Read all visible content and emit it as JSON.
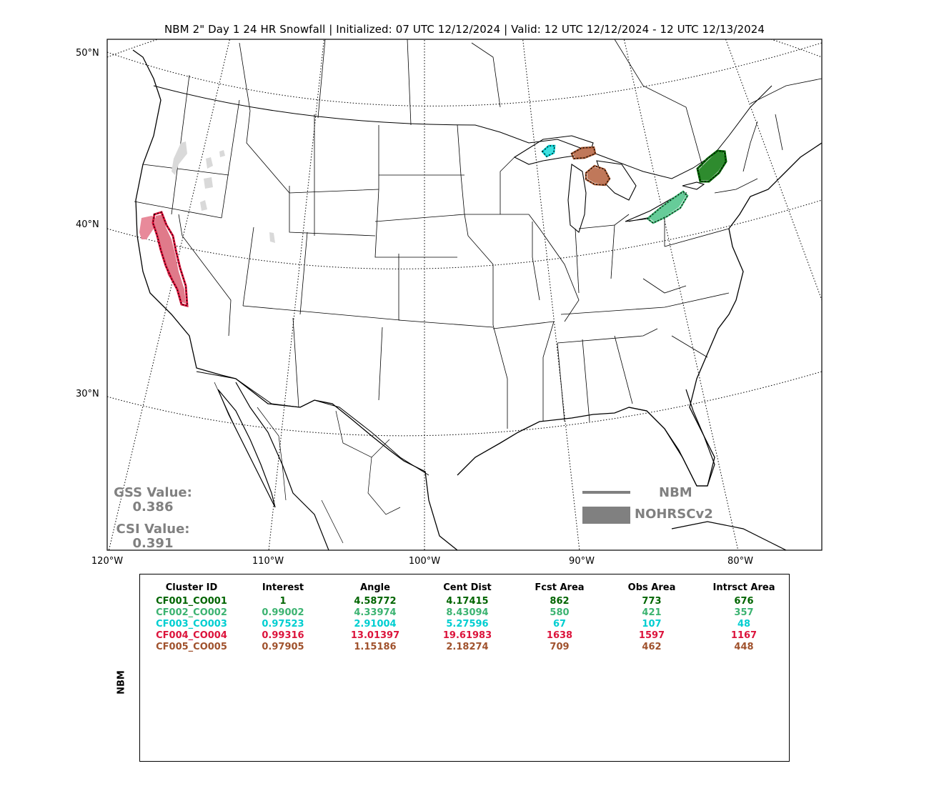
{
  "title": "NBM 2\" Day 1 24 HR Snowfall | Initialized: 07 UTC 12/12/2024 | Valid: 12 UTC 12/12/2024 - 12 UTC 12/13/2024",
  "lat_labels": [
    "50°N",
    "40°N",
    "30°N"
  ],
  "lon_labels": [
    "120°W",
    "110°W",
    "100°W",
    "90°W",
    "80°W"
  ],
  "scores": {
    "gss_label": "GSS Value:",
    "gss_value": "0.386",
    "csi_label": "CSI Value:",
    "csi_value": "0.391"
  },
  "legend": {
    "forecast_label": "NBM",
    "observed_label": "NOHRSCv2",
    "color": "#808080"
  },
  "colors": {
    "cluster1": "#006400",
    "cluster2": "#3cb371",
    "cluster3": "#00ced1",
    "cluster4": "#dc143c",
    "cluster5": "#a0522d",
    "unmatched": "#d9d9d9"
  },
  "table": {
    "row_label": "NBM",
    "headers": [
      "Cluster ID",
      "Interest",
      "Angle",
      "Cent Dist",
      "Fcst Area",
      "Obs Area",
      "Intrsct Area"
    ],
    "rows": [
      {
        "id": "CF001_CO001",
        "interest": "1",
        "angle": "4.58772",
        "cent_dist": "4.17415",
        "fcst_area": "862",
        "obs_area": "773",
        "intrsct_area": "676",
        "color": "#006400"
      },
      {
        "id": "CF002_CO002",
        "interest": "0.99002",
        "angle": "4.33974",
        "cent_dist": "8.43094",
        "fcst_area": "580",
        "obs_area": "421",
        "intrsct_area": "357",
        "color": "#3cb371"
      },
      {
        "id": "CF003_CO003",
        "interest": "0.97523",
        "angle": "2.91004",
        "cent_dist": "5.27596",
        "fcst_area": "67",
        "obs_area": "107",
        "intrsct_area": "48",
        "color": "#00ced1"
      },
      {
        "id": "CF004_CO004",
        "interest": "0.99316",
        "angle": "13.01397",
        "cent_dist": "19.61983",
        "fcst_area": "1638",
        "obs_area": "1597",
        "intrsct_area": "1167",
        "color": "#dc143c"
      },
      {
        "id": "CF005_CO005",
        "interest": "0.97905",
        "angle": "1.15186",
        "cent_dist": "2.18274",
        "fcst_area": "709",
        "obs_area": "462",
        "intrsct_area": "448",
        "color": "#a0522d"
      }
    ]
  }
}
